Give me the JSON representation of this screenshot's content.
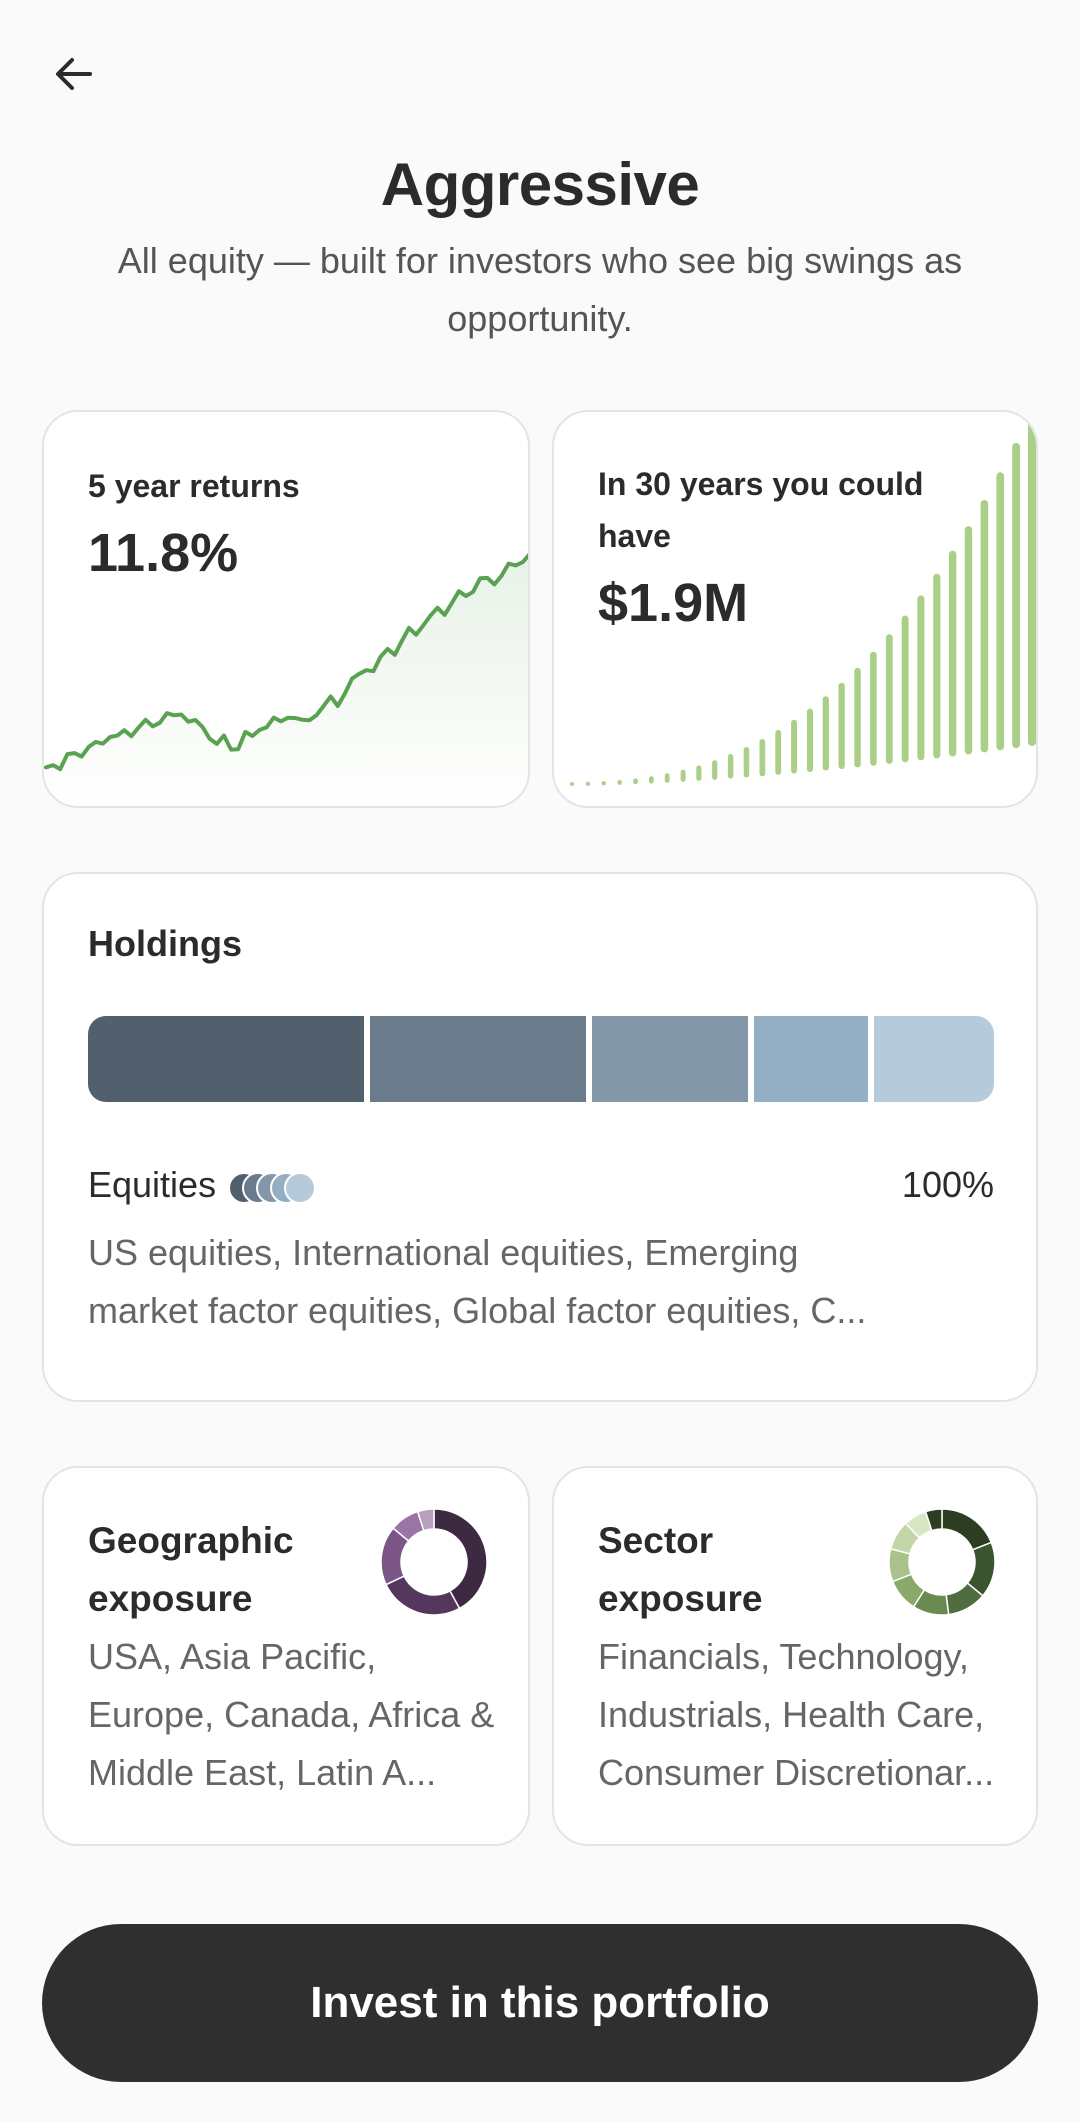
{
  "header": {
    "title": "Aggressive",
    "subtitle": "All equity — built for investors who see big swings as opportunity."
  },
  "returns_card": {
    "label": "5 year returns",
    "value": "11.8%",
    "line_color": "#5aa152"
  },
  "growth_card": {
    "label": "In 30 years you could have",
    "value": "$1.9M",
    "bar_color": "#aacf86",
    "bar_count": 30
  },
  "holdings": {
    "title": "Holdings",
    "segments": [
      {
        "share": 0.23,
        "color": "#52606e"
      },
      {
        "share": 0.18,
        "color": "#6a7c8c"
      },
      {
        "share": 0.13,
        "color": "#8497a8"
      },
      {
        "share": 0.095,
        "color": "#94afc3"
      },
      {
        "share": 0.1,
        "color": "#b5cadb"
      }
    ],
    "row_label": "Equities",
    "row_percent": "100%",
    "row_dot_colors": [
      "#52606e",
      "#6a7c8c",
      "#8497a8",
      "#94afc3",
      "#b5cadb"
    ],
    "row_description": "US equities, International equities, Emerging market factor equities, Global factor equities, C..."
  },
  "geographic": {
    "title": "Geographic exposure",
    "description": "USA, Asia Pacific, Europe, Canada, Africa & Middle East, Latin A...",
    "donut_colors": [
      "#3d2942",
      "#55375e",
      "#7a5585",
      "#9a74a4",
      "#b99fc0"
    ]
  },
  "sector": {
    "title": "Sector exposure",
    "description": "Financials, Technology, Industrials, Health Care, Consumer Discretionar...",
    "donut_colors": [
      "#2c3d22",
      "#3b5430",
      "#4f6d3e",
      "#6a8a52",
      "#8aa86a",
      "#a8c28a",
      "#c3d6a8",
      "#d9e6c4"
    ]
  },
  "actions": {
    "invest_label": "Invest in this portfolio"
  },
  "icons": {
    "back": "arrow-left-icon"
  }
}
